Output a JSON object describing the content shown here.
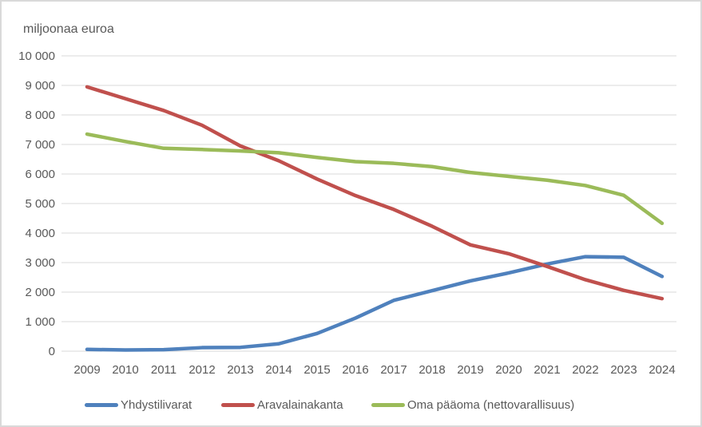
{
  "chart_data": {
    "type": "line",
    "title": "miljoonaa euroa",
    "xlabel": "",
    "ylabel": "miljoonaa euroa",
    "x_tick_labels": [
      "2009",
      "2010",
      "2011",
      "2012",
      "2013",
      "2014",
      "2015",
      "2016",
      "2017",
      "2018",
      "2019",
      "2020",
      "2021",
      "2022",
      "2023",
      "2024"
    ],
    "y_tick_labels": [
      "0",
      "1 000",
      "2 000",
      "3 000",
      "4 000",
      "5 000",
      "6 000",
      "7 000",
      "8 000",
      "9 000",
      "10 000"
    ],
    "ylim": [
      0,
      10000
    ],
    "y_tick_step": 1000,
    "grid": true,
    "legend_position": "bottom",
    "series": [
      {
        "name": "Yhdystilivarat",
        "color": "#4F81BD",
        "values": [
          60,
          40,
          50,
          120,
          130,
          250,
          600,
          1120,
          1720,
          2050,
          2380,
          2650,
          2950,
          3200,
          3180,
          2530
        ]
      },
      {
        "name": "Aravalainakanta",
        "color": "#C0504D",
        "values": [
          8950,
          8550,
          8150,
          7650,
          6950,
          6450,
          5830,
          5270,
          4800,
          4230,
          3600,
          3300,
          2870,
          2420,
          2060,
          1780
        ]
      },
      {
        "name": "Oma pääoma (nettovarallisuus)",
        "color": "#9BBB59",
        "values": [
          7350,
          7100,
          6870,
          6830,
          6780,
          6720,
          6560,
          6420,
          6360,
          6250,
          6050,
          5920,
          5790,
          5610,
          5280,
          4330
        ]
      }
    ]
  },
  "colors": {
    "text": "#595959",
    "gridline": "#D9D9D9",
    "border": "#D9D9D9",
    "background": "#FFFFFF"
  }
}
